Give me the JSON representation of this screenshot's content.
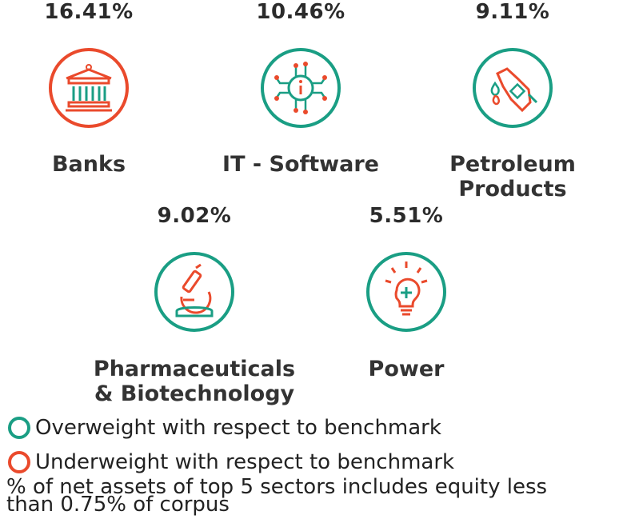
{
  "colors": {
    "overweight": "#1a9e84",
    "underweight": "#ea4a2c"
  },
  "sectors": [
    {
      "name_line1": "Banks",
      "name_line2": "",
      "percent": "16.41%",
      "weight": "underweight",
      "icon": "bank-icon"
    },
    {
      "name_line1": "IT - Software",
      "name_line2": "",
      "percent": "10.46%",
      "weight": "overweight",
      "icon": "chip-icon"
    },
    {
      "name_line1": "Petroleum",
      "name_line2": "Products",
      "percent": "9.11%",
      "weight": "overweight",
      "icon": "fuel-nozzle-icon"
    },
    {
      "name_line1": "Pharmaceuticals",
      "name_line2": "& Biotechnology",
      "percent": "9.02%",
      "weight": "overweight",
      "icon": "microscope-icon"
    },
    {
      "name_line1": "Power",
      "name_line2": "",
      "percent": "5.51%",
      "weight": "overweight",
      "icon": "lightbulb-icon"
    }
  ],
  "legend": {
    "overweight": "Overweight with respect to benchmark",
    "underweight": "Underweight with respect to benchmark"
  },
  "footnote": "% of net assets of top 5 sectors includes equity less than 0.75% of corpus"
}
